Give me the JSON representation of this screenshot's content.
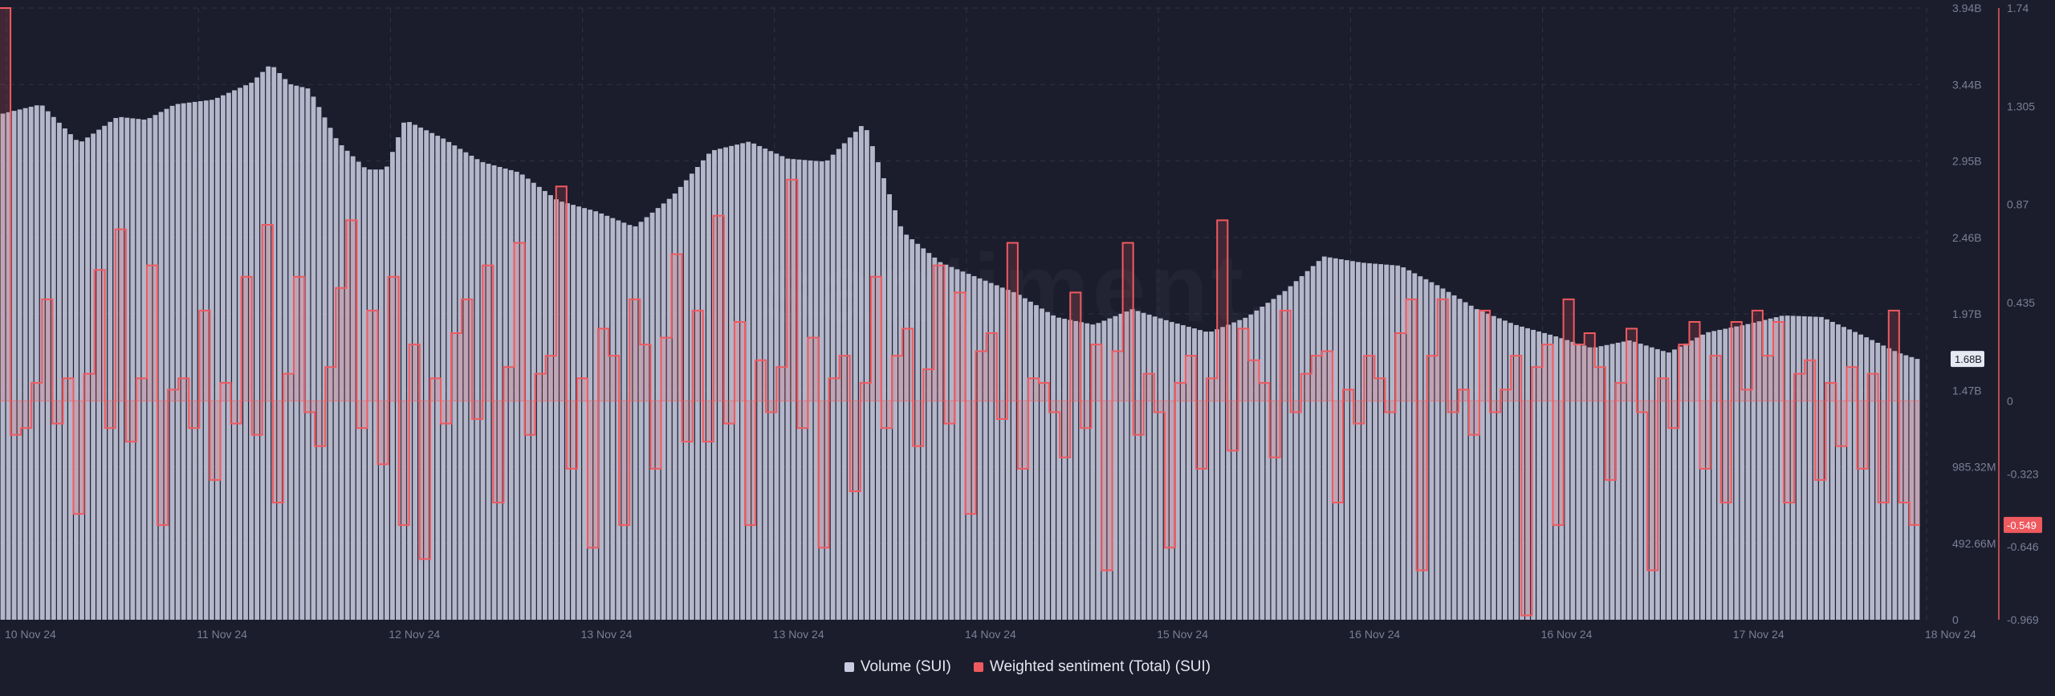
{
  "watermark": "santiment.",
  "legend": {
    "volume_label": "Volume (SUI)",
    "sentiment_label": "Weighted sentiment (Total) (SUI)"
  },
  "colors": {
    "background": "#1b1d2c",
    "volume": "#c9cce0",
    "sentiment": "#ef5a5f",
    "grid": "#2e3244",
    "axis_text": "#7a7f95",
    "badge_volume_bg": "#e6e8f2",
    "badge_sentiment_bg": "#ef5a5f"
  },
  "chart_data": {
    "type": "bar",
    "x_ticks": [
      "10 Nov 24",
      "11 Nov 24",
      "12 Nov 24",
      "13 Nov 24",
      "13 Nov 24",
      "14 Nov 24",
      "15 Nov 24",
      "16 Nov 24",
      "16 Nov 24",
      "17 Nov 24",
      "18 Nov 24"
    ],
    "y_left_ticks": [
      "3.94B",
      "3.44B",
      "2.95B",
      "2.46B",
      "1.97B",
      "1.47B",
      "985.32M",
      "492.66M",
      "0"
    ],
    "y_right_ticks": [
      "1.74",
      "1.305",
      "0.87",
      "0.435",
      "0",
      "-0.323",
      "-0.646",
      "-0.969"
    ],
    "y_left_range": [
      0,
      3.94
    ],
    "y_right_range": [
      -0.969,
      1.74
    ],
    "current_volume_badge": "1.68B",
    "current_sentiment_badge": "-0.549",
    "series": [
      {
        "name": "Volume (SUI)",
        "type": "bar",
        "unit": "B",
        "x_norm": [
          0,
          0.02,
          0.04,
          0.06,
          0.075,
          0.09,
          0.11,
          0.13,
          0.14,
          0.15,
          0.16,
          0.175,
          0.19,
          0.2,
          0.21,
          0.23,
          0.25,
          0.27,
          0.29,
          0.31,
          0.33,
          0.35,
          0.37,
          0.39,
          0.41,
          0.43,
          0.45,
          0.47,
          0.49,
          0.51,
          0.53,
          0.55,
          0.57,
          0.59,
          0.61,
          0.63,
          0.65,
          0.67,
          0.69,
          0.71,
          0.73,
          0.75,
          0.77,
          0.79,
          0.81,
          0.83,
          0.85,
          0.87,
          0.89,
          0.91,
          0.93,
          0.95,
          0.97,
          0.99,
          1.0
        ],
        "values": [
          3.26,
          3.32,
          3.07,
          3.24,
          3.22,
          3.32,
          3.35,
          3.46,
          3.58,
          3.45,
          3.42,
          3.08,
          2.9,
          2.9,
          3.22,
          3.1,
          2.95,
          2.88,
          2.7,
          2.63,
          2.53,
          2.73,
          3.02,
          3.08,
          2.97,
          2.95,
          3.2,
          2.5,
          2.3,
          2.2,
          2.1,
          1.95,
          1.9,
          2.0,
          1.92,
          1.85,
          1.95,
          2.12,
          2.34,
          2.3,
          2.28,
          2.15,
          2.0,
          1.9,
          1.83,
          1.75,
          1.8,
          1.72,
          1.85,
          1.9,
          1.96,
          1.95,
          1.84,
          1.72,
          1.68
        ]
      },
      {
        "name": "Weighted sentiment (Total) (SUI)",
        "type": "step",
        "values": [
          1.74,
          -0.15,
          -0.12,
          0.08,
          0.45,
          -0.1,
          0.1,
          -0.5,
          0.12,
          0.58,
          -0.12,
          0.76,
          -0.18,
          0.1,
          0.6,
          -0.55,
          0.05,
          0.1,
          -0.12,
          0.4,
          -0.35,
          0.08,
          -0.1,
          0.55,
          -0.15,
          0.78,
          -0.45,
          0.12,
          0.55,
          -0.05,
          -0.2,
          0.15,
          0.5,
          0.8,
          -0.12,
          0.4,
          -0.28,
          0.55,
          -0.55,
          0.25,
          -0.7,
          0.1,
          -0.1,
          0.3,
          0.45,
          -0.08,
          0.6,
          -0.45,
          0.15,
          0.7,
          -0.15,
          0.12,
          0.2,
          0.95,
          -0.3,
          0.1,
          -0.65,
          0.32,
          0.2,
          -0.55,
          0.45,
          0.25,
          -0.3,
          0.28,
          0.65,
          -0.18,
          0.4,
          -0.18,
          0.82,
          -0.1,
          0.35,
          -0.55,
          0.18,
          -0.05,
          0.15,
          0.98,
          -0.12,
          0.28,
          -0.65,
          0.1,
          0.2,
          -0.4,
          0.08,
          0.55,
          -0.12,
          0.2,
          0.32,
          -0.2,
          0.14,
          0.6,
          -0.1,
          0.48,
          -0.5,
          0.22,
          0.3,
          -0.08,
          0.7,
          -0.3,
          0.1,
          0.08,
          -0.05,
          -0.25,
          0.48,
          -0.12,
          0.25,
          -0.75,
          0.22,
          0.7,
          -0.15,
          0.12,
          -0.05,
          -0.65,
          0.08,
          0.2,
          -0.3,
          0.1,
          0.8,
          -0.22,
          0.32,
          0.18,
          0.08,
          -0.25,
          0.4,
          -0.05,
          0.12,
          0.2,
          0.22,
          -0.45,
          0.05,
          -0.1,
          0.2,
          0.1,
          -0.05,
          0.3,
          0.45,
          -0.75,
          0.2,
          0.45,
          -0.05,
          0.05,
          -0.15,
          0.4,
          -0.05,
          0.05,
          0.2,
          -0.95,
          0.15,
          0.25,
          -0.55,
          0.45,
          0.25,
          0.3,
          0.15,
          -0.35,
          0.08,
          0.32,
          -0.05,
          -0.75,
          0.1,
          -0.12,
          0.25,
          0.35,
          -0.3,
          0.2,
          -0.45,
          0.35,
          0.05,
          0.4,
          0.2,
          0.35,
          -0.45,
          0.12,
          0.18,
          -0.35,
          0.08,
          -0.2,
          0.15,
          -0.3,
          0.12,
          -0.45,
          0.4,
          -0.45,
          -0.549
        ]
      }
    ]
  }
}
